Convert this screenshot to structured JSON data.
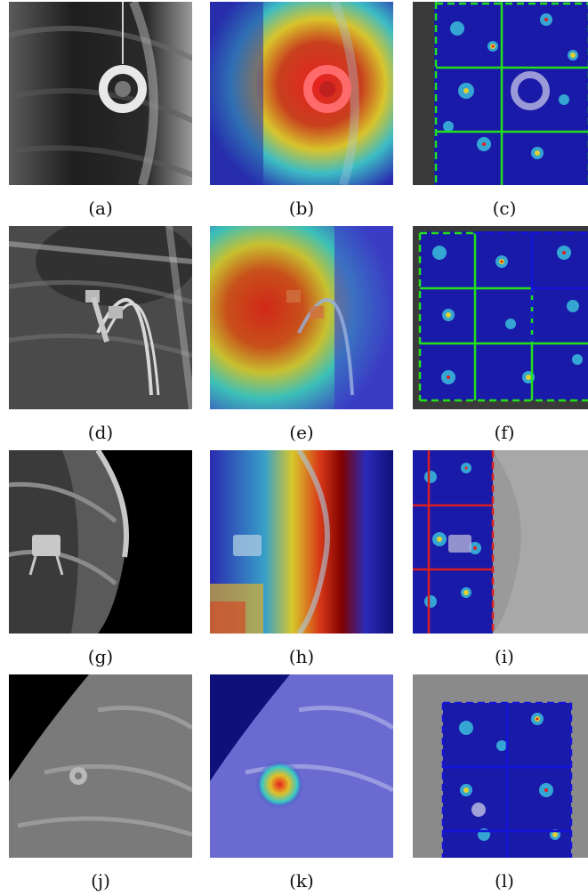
{
  "panels": [
    {
      "id": "a",
      "caption": "(a)"
    },
    {
      "id": "b",
      "caption": "(b)"
    },
    {
      "id": "c",
      "caption": "(c)"
    },
    {
      "id": "d",
      "caption": "(d)"
    },
    {
      "id": "e",
      "caption": "(e)"
    },
    {
      "id": "f",
      "caption": "(f)"
    },
    {
      "id": "g",
      "caption": "(g)"
    },
    {
      "id": "h",
      "caption": "(h)"
    },
    {
      "id": "i",
      "caption": "(i)"
    },
    {
      "id": "j",
      "caption": "(j)"
    },
    {
      "id": "k",
      "caption": "(k)"
    },
    {
      "id": "l",
      "caption": "(l)"
    }
  ],
  "colors": {
    "grid_green": "#22e01a",
    "grid_blue": "#1414d8",
    "grid_red": "#d81e1e",
    "heat_red": "#e52020",
    "heat_yellow": "#e8d428",
    "heat_cyan": "#38c8c8",
    "heat_blue": "#2a2ab8"
  }
}
